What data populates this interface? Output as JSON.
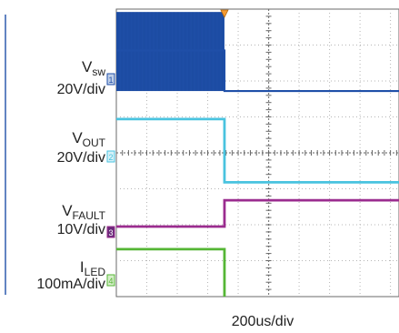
{
  "chart_data": {
    "type": "line",
    "title": "",
    "xlabel": "200us/div",
    "ylabel": "",
    "grid": true,
    "x_divisions": 10,
    "y_divisions": 8,
    "trigger_time_div": 3.55,
    "series": [
      {
        "key": "vsw",
        "label_main": "V",
        "label_sub": "sw",
        "scale": "20V/div",
        "marker": "1",
        "color": "#1f4fa8",
        "marker_fill": "#bfcfe8",
        "style": "switching",
        "points": [
          [
            0,
            1.15
          ],
          [
            3.55,
            1.15
          ],
          [
            3.55,
            2.28
          ],
          [
            10,
            2.28
          ]
        ],
        "band_top_div": 0.08,
        "band_bottom_div": 2.28
      },
      {
        "key": "vout",
        "label_main": "V",
        "label_sub": "OUT",
        "scale": "20V/div",
        "marker": "2",
        "color": "#49c3df",
        "marker_fill": "#d6f1f8",
        "style": "line",
        "points": [
          [
            0,
            3.06
          ],
          [
            3.55,
            3.06
          ],
          [
            3.55,
            4.82
          ],
          [
            10,
            4.82
          ]
        ]
      },
      {
        "key": "vfault",
        "label_main": "V",
        "label_sub": "FAULT",
        "scale": "10V/div",
        "marker": "3",
        "color": "#9b2c8f",
        "marker_fill": "#6a2a7a",
        "style": "line",
        "points": [
          [
            0,
            6.05
          ],
          [
            3.55,
            6.05
          ],
          [
            3.55,
            5.32
          ],
          [
            10,
            5.32
          ]
        ]
      },
      {
        "key": "iled",
        "label_main": "I",
        "label_sub": "LED",
        "scale": "100mA/div",
        "marker": "4",
        "color": "#55b635",
        "marker_fill": "#d5eec9",
        "style": "line",
        "points": [
          [
            0,
            6.68
          ],
          [
            3.55,
            6.68
          ],
          [
            3.55,
            8.48
          ],
          [
            10,
            8.48
          ]
        ]
      }
    ]
  }
}
